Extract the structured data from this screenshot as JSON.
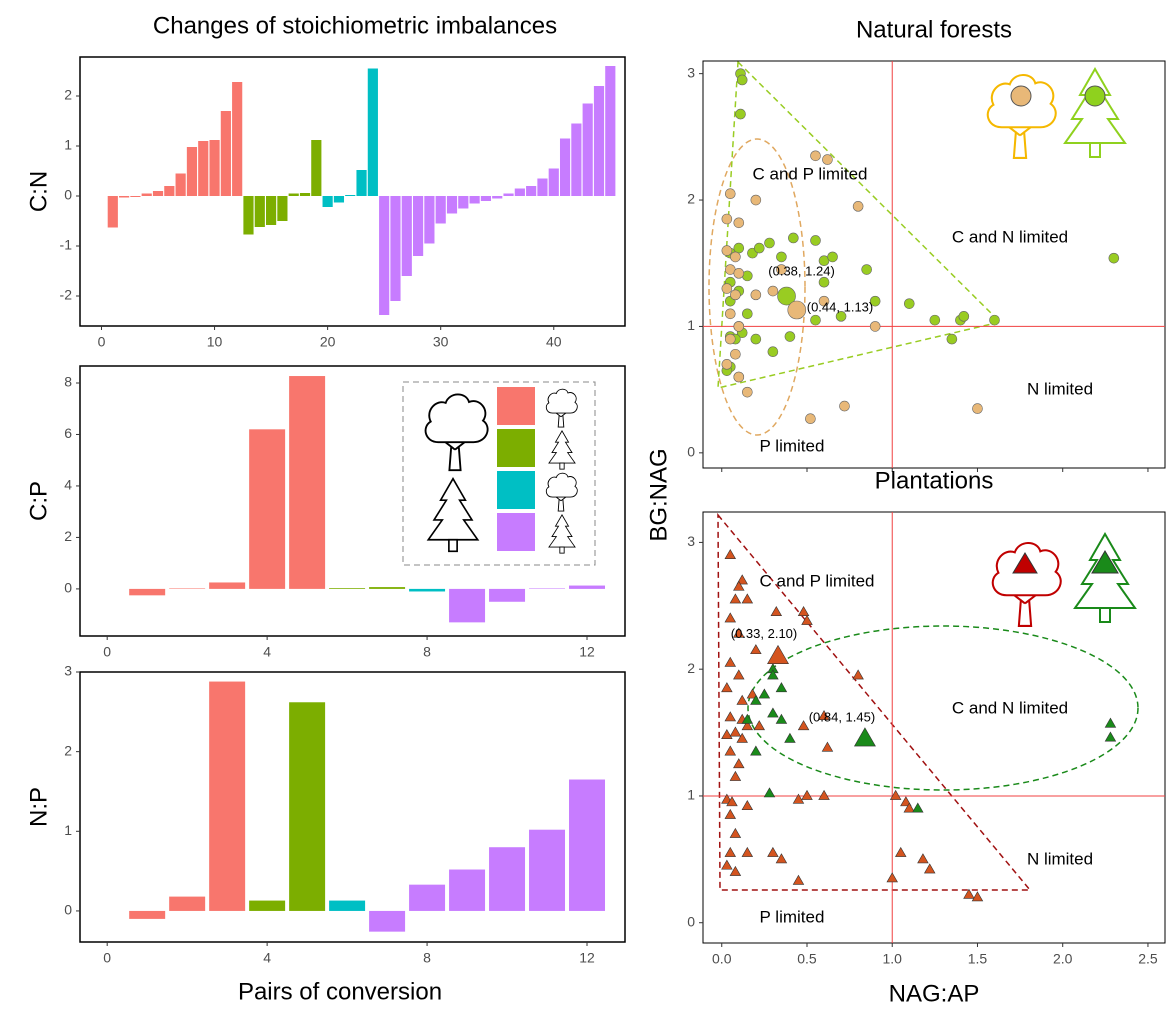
{
  "figure": {
    "title": "Changes of stoichiometric imbalances",
    "left_xlabel": "Pairs of conversion",
    "right_ylabel": "BG:NAG",
    "right_xlabel": "NAG:AP"
  },
  "chart_data": [
    {
      "type": "bar",
      "ylabel": "C:N",
      "xlim": [
        -1.9,
        46.3
      ],
      "ylim": [
        -2.6,
        2.78
      ],
      "xticks": [
        0,
        10,
        20,
        30,
        40
      ],
      "yticks": [
        -2,
        -1,
        0,
        1,
        2
      ],
      "series": [
        {
          "color": "#f8766d",
          "x": [
            1,
            2,
            3,
            4,
            5,
            6,
            7,
            8,
            9,
            10,
            11,
            12
          ],
          "values": [
            -0.63,
            -0.03,
            -0.02,
            0.05,
            0.1,
            0.2,
            0.45,
            0.98,
            1.1,
            1.12,
            1.7,
            2.28
          ]
        },
        {
          "color": "#7cae00",
          "x": [
            13,
            14,
            15,
            16,
            17,
            18,
            19
          ],
          "values": [
            -0.77,
            -0.62,
            -0.58,
            -0.5,
            0.05,
            0.06,
            1.12
          ]
        },
        {
          "color": "#00bfc4",
          "x": [
            20,
            21,
            22,
            23,
            24
          ],
          "values": [
            -0.22,
            -0.13,
            0.02,
            0.52,
            2.55
          ]
        },
        {
          "color": "#c77cff",
          "x": [
            25,
            26,
            27,
            28,
            29,
            30,
            31,
            32,
            33,
            34,
            35,
            36,
            37,
            38,
            39,
            40,
            41,
            42,
            43,
            44,
            45
          ],
          "values": [
            -2.38,
            -2.1,
            -1.6,
            -1.2,
            -0.95,
            -0.55,
            -0.35,
            -0.25,
            -0.15,
            -0.1,
            -0.05,
            0.05,
            0.15,
            0.2,
            0.35,
            0.55,
            1.15,
            1.45,
            1.85,
            2.2,
            2.6
          ]
        }
      ]
    },
    {
      "type": "bar",
      "ylabel": "C:P",
      "xlim": [
        -0.68,
        12.95
      ],
      "ylim": [
        -1.83,
        8.66
      ],
      "xticks": [
        0,
        4,
        8,
        12
      ],
      "yticks": [
        0,
        2,
        4,
        6,
        8
      ],
      "series": [
        {
          "color": "#f8766d",
          "x": [
            1,
            2,
            3,
            4,
            5
          ],
          "values": [
            -0.25,
            0.02,
            0.25,
            6.2,
            8.27
          ]
        },
        {
          "color": "#7cae00",
          "x": [
            6,
            7
          ],
          "values": [
            0.03,
            0.07
          ]
        },
        {
          "color": "#00bfc4",
          "x": [
            8
          ],
          "values": [
            -0.1
          ]
        },
        {
          "color": "#c77cff",
          "x": [
            9,
            10,
            11,
            12
          ],
          "values": [
            -1.3,
            -0.5,
            0.02,
            0.13
          ]
        }
      ]
    },
    {
      "type": "bar",
      "ylabel": "N:P",
      "xlim": [
        -0.68,
        12.95
      ],
      "ylim": [
        -0.39,
        3.0
      ],
      "xticks": [
        0,
        4,
        8,
        12
      ],
      "yticks": [
        0,
        1,
        2,
        3
      ],
      "series": [
        {
          "color": "#f8766d",
          "x": [
            1,
            2,
            3
          ],
          "values": [
            -0.1,
            0.18,
            2.88
          ]
        },
        {
          "color": "#7cae00",
          "x": [
            4,
            5
          ],
          "values": [
            0.13,
            2.62
          ]
        },
        {
          "color": "#00bfc4",
          "x": [
            6
          ],
          "values": [
            0.13
          ]
        },
        {
          "color": "#c77cff",
          "x": [
            7,
            8,
            9,
            10,
            11,
            12
          ],
          "values": [
            -0.26,
            0.33,
            0.52,
            0.8,
            1.02,
            1.65
          ]
        }
      ]
    },
    {
      "type": "scatter",
      "title": "Natural forests",
      "xlim": [
        -0.11,
        2.6
      ],
      "ylim": [
        -0.12,
        3.1
      ],
      "xticks": [
        0,
        0.5,
        1,
        1.5,
        2,
        2.5
      ],
      "show_xtick_labels": false,
      "yticks": [
        0,
        1,
        2,
        3
      ],
      "vline": 1,
      "hline": 1,
      "line_color": "#f04040",
      "series": [
        {
          "color": "#99cc22",
          "marker": "circle",
          "x": [
            0.11,
            0.12,
            0.11,
            0.05,
            0.1,
            0.18,
            0.22,
            0.28,
            0.35,
            0.42,
            0.55,
            0.6,
            0.85,
            0.05,
            0.15,
            0.1,
            0.05,
            0.15,
            0.1,
            0.05,
            0.12,
            0.2,
            0.3,
            0.4,
            0.55,
            0.7,
            0.9,
            1.1,
            1.25,
            1.35,
            1.4,
            1.42,
            1.6,
            0.05,
            0.1,
            0.6,
            0.65,
            2.3,
            0.08,
            0.03
          ],
          "values": [
            3.0,
            2.95,
            2.68,
            1.58,
            1.62,
            1.58,
            1.62,
            1.66,
            1.55,
            1.7,
            1.68,
            1.52,
            1.45,
            1.35,
            1.4,
            1.28,
            1.2,
            1.1,
            1.0,
            0.92,
            0.95,
            0.9,
            0.8,
            0.92,
            1.05,
            1.08,
            1.2,
            1.18,
            1.05,
            0.9,
            1.05,
            1.08,
            1.05,
            0.68,
            0.6,
            1.35,
            1.55,
            1.54,
            0.9,
            0.65
          ]
        },
        {
          "color": "#e8b878",
          "marker": "circle",
          "x": [
            0.05,
            0.03,
            0.1,
            0.08,
            0.05,
            0.1,
            0.03,
            0.08,
            0.05,
            0.1,
            0.05,
            0.08,
            0.03,
            0.1,
            0.15,
            0.35,
            0.45,
            0.6,
            0.9,
            0.55,
            0.62,
            0.8,
            0.52,
            0.72,
            1.5,
            0.2,
            0.3,
            0.2,
            0.03
          ],
          "values": [
            2.05,
            1.85,
            1.82,
            1.55,
            1.45,
            1.42,
            1.3,
            1.25,
            1.1,
            1.0,
            0.9,
            0.78,
            0.7,
            0.6,
            0.48,
            1.45,
            1.1,
            1.2,
            1.0,
            2.35,
            2.32,
            1.95,
            0.27,
            0.37,
            0.35,
            1.25,
            1.28,
            2.0,
            1.6
          ]
        }
      ],
      "centroids": [
        {
          "color": "#99cc22",
          "marker": "circle",
          "x": 0.38,
          "y": 1.24,
          "label": "(0.38, 1.24)"
        },
        {
          "color": "#e8b878",
          "marker": "circle",
          "x": 0.44,
          "y": 1.13,
          "label": "(0.44, 1.13)"
        }
      ],
      "annotations": [
        "C and P limited",
        "C and N limited",
        "N limited",
        "P limited"
      ]
    },
    {
      "type": "scatter",
      "title": "Plantations",
      "xlim": [
        -0.11,
        2.6
      ],
      "ylim": [
        -0.16,
        3.24
      ],
      "xticks": [
        {
          "value": 0,
          "label": "0.0"
        },
        {
          "value": 0.5,
          "label": "0.5"
        },
        {
          "value": 1,
          "label": "1.0"
        },
        {
          "value": 1.5,
          "label": "1.5"
        },
        {
          "value": 2,
          "label": "2.0"
        },
        {
          "value": 2.5,
          "label": "2.5"
        }
      ],
      "yticks": [
        0,
        1,
        2,
        3
      ],
      "vline": 1,
      "hline": 1,
      "line_color": "#f04040",
      "series": [
        {
          "color": "#d4541f",
          "marker": "triangle",
          "x": [
            0.05,
            0.08,
            0.12,
            0.1,
            0.05,
            0.15,
            0.32,
            0.48,
            0.5,
            0.1,
            0.2,
            0.05,
            0.1,
            0.03,
            0.12,
            0.18,
            0.05,
            0.12,
            0.15,
            0.03,
            0.08,
            0.12,
            0.05,
            0.1,
            0.08,
            0.03,
            0.06,
            0.15,
            0.05,
            0.45,
            0.5,
            0.6,
            0.48,
            0.6,
            0.62,
            0.8,
            0.08,
            0.05,
            0.03,
            0.08,
            0.15,
            0.3,
            0.35,
            0.45,
            1.0,
            1.02,
            1.08,
            1.1,
            1.05,
            1.18,
            1.22,
            1.45,
            1.5,
            0.22
          ],
          "values": [
            2.9,
            2.55,
            2.7,
            2.65,
            2.4,
            2.55,
            2.45,
            2.45,
            2.38,
            2.28,
            2.15,
            2.05,
            1.95,
            1.85,
            1.75,
            1.8,
            1.62,
            1.6,
            1.55,
            1.48,
            1.5,
            1.45,
            1.35,
            1.25,
            1.15,
            0.97,
            0.95,
            0.92,
            0.85,
            0.97,
            1.0,
            1.0,
            1.55,
            1.63,
            1.38,
            1.95,
            0.7,
            0.55,
            0.45,
            0.4,
            0.55,
            0.55,
            0.5,
            0.33,
            0.35,
            1.0,
            0.95,
            0.9,
            0.55,
            0.5,
            0.42,
            0.22,
            0.2,
            1.55
          ]
        },
        {
          "color": "#1a8a1a",
          "marker": "triangle",
          "x": [
            0.3,
            0.3,
            0.25,
            0.35,
            0.2,
            0.15,
            0.3,
            0.35,
            0.4,
            0.28,
            1.15,
            2.28,
            2.28,
            0.2
          ],
          "values": [
            2.0,
            1.95,
            1.8,
            1.85,
            1.75,
            1.6,
            1.65,
            1.6,
            1.45,
            1.02,
            0.9,
            1.57,
            1.46,
            1.35
          ]
        }
      ],
      "centroids": [
        {
          "color": "#d4541f",
          "marker": "triangle",
          "x": 0.33,
          "y": 2.1,
          "label": "(0.33, 2.10)"
        },
        {
          "color": "#1a8a1a",
          "marker": "triangle",
          "x": 0.84,
          "y": 1.45,
          "label": "(0.84, 1.45)"
        }
      ],
      "annotations": [
        "C and P limited",
        "C and N limited",
        "N limited",
        "P limited"
      ]
    }
  ]
}
